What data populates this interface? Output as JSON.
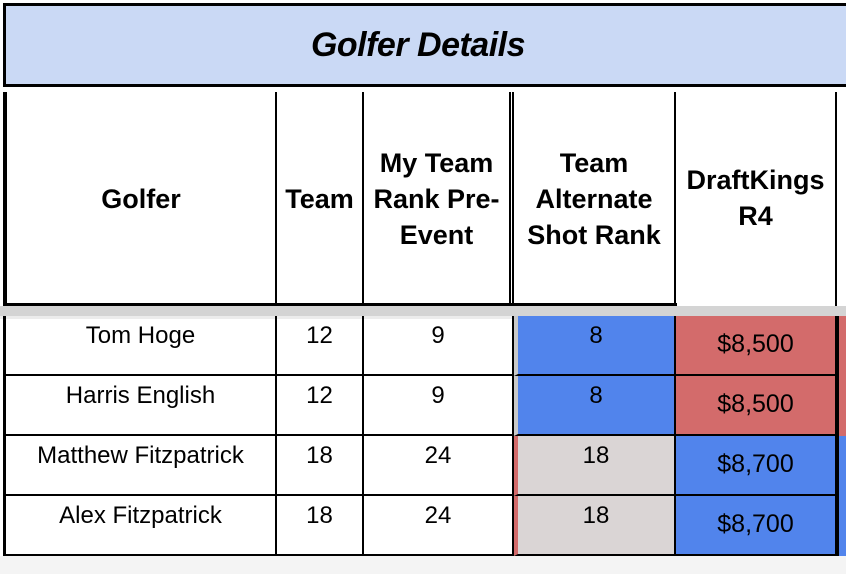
{
  "sheet": {
    "title": "Golfer Details",
    "columns": [
      {
        "key": "golfer",
        "label": "Golfer"
      },
      {
        "key": "team",
        "label": "Team"
      },
      {
        "key": "my_team_rank",
        "label": "My Team Rank Pre-Event"
      },
      {
        "key": "alt_shot_rank",
        "label": "Team Alternate Shot Rank"
      },
      {
        "key": "draftkings",
        "label": "DraftKings R4"
      }
    ],
    "rows": [
      {
        "golfer": "Tom Hoge",
        "team": "12",
        "my_team_rank": "9",
        "alt_shot_rank": "8",
        "draftkings": "$8,500"
      },
      {
        "golfer": "Harris English",
        "team": "12",
        "my_team_rank": "9",
        "alt_shot_rank": "8",
        "draftkings": "$8,500"
      },
      {
        "golfer": "Matthew Fitzpatrick",
        "team": "18",
        "my_team_rank": "24",
        "alt_shot_rank": "18",
        "draftkings": "$8,700"
      },
      {
        "golfer": "Alex Fitzpatrick",
        "team": "18",
        "my_team_rank": "24",
        "alt_shot_rank": "18",
        "draftkings": "$8,700"
      }
    ]
  },
  "colors": {
    "title_fill": "#cad9f5",
    "blue_fill": "#5184ec",
    "red_fill": "#d36b6b",
    "gray_fill": "#dad5d5"
  }
}
